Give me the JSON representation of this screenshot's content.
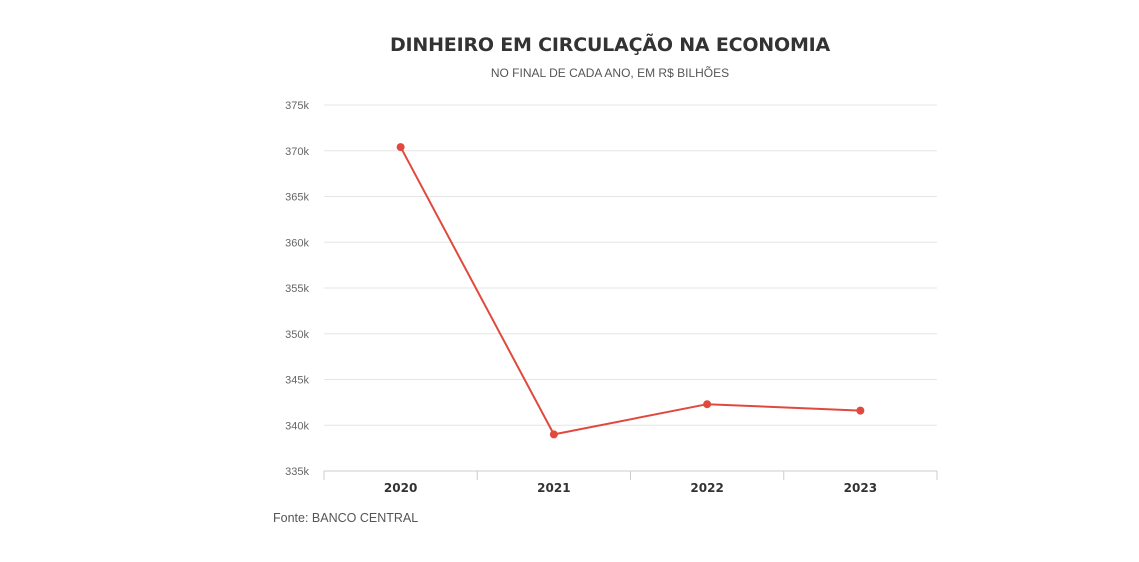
{
  "chart_data": {
    "type": "line",
    "title": "DINHEIRO EM CIRCULAÇÃO NA ECONOMIA",
    "subtitle": "NO FINAL DE CADA ANO, EM R$ BILHÕES",
    "categories": [
      "2020",
      "2021",
      "2022",
      "2023"
    ],
    "series": [
      {
        "values": [
          370.4,
          339.0,
          342.3,
          341.6
        ]
      }
    ],
    "yticks": [
      335,
      340,
      345,
      350,
      355,
      360,
      365,
      370,
      375
    ],
    "ytick_labels": [
      "335k",
      "340k",
      "345k",
      "350k",
      "355k",
      "360k",
      "365k",
      "370k",
      "375k"
    ],
    "ylim": [
      335,
      375
    ],
    "grid": true,
    "source": "Fonte: BANCO CENTRAL",
    "colors": {
      "line": "#e0493d",
      "grid": "#e6e6e6",
      "axis": "#cccccc"
    }
  }
}
